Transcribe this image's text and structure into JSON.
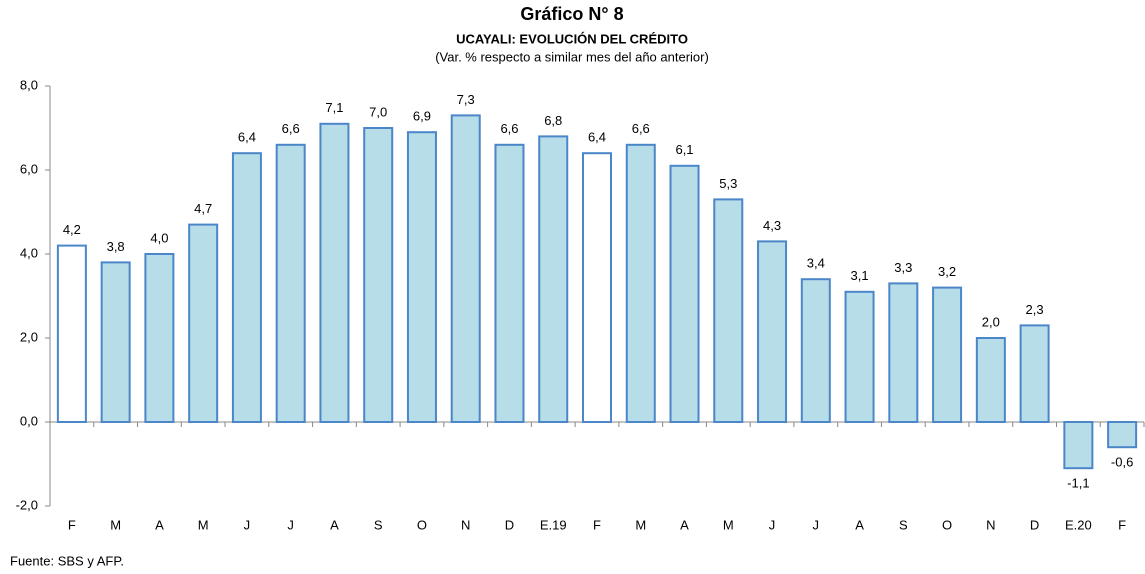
{
  "chart_data": {
    "type": "bar",
    "title": "Gráfico N° 8",
    "subtitle": "UCAYALI: EVOLUCIÓN DEL CRÉDITO",
    "note": "(Var. % respecto a similar mes del año anterior)",
    "source": "Fuente: SBS y AFP.",
    "categories": [
      "F",
      "M",
      "A",
      "M",
      "J",
      "J",
      "A",
      "S",
      "O",
      "N",
      "D",
      "E.19",
      "F",
      "M",
      "A",
      "M",
      "J",
      "J",
      "A",
      "S",
      "O",
      "N",
      "D",
      "E.20",
      "F"
    ],
    "values": [
      4.2,
      3.8,
      4.0,
      4.7,
      6.4,
      6.6,
      7.1,
      7.0,
      6.9,
      7.3,
      6.6,
      6.8,
      6.4,
      6.6,
      6.1,
      5.3,
      4.3,
      3.4,
      3.1,
      3.3,
      3.2,
      2.0,
      2.3,
      -1.1,
      -0.6
    ],
    "value_labels": [
      "4,2",
      "3,8",
      "4,0",
      "4,7",
      "6,4",
      "6,6",
      "7,1",
      "7,0",
      "6,9",
      "7,3",
      "6,6",
      "6,8",
      "6,4",
      "6,6",
      "6,1",
      "5,3",
      "4,3",
      "3,4",
      "3,1",
      "3,3",
      "3,2",
      "2,0",
      "2,3",
      "-1,1",
      "-0,6"
    ],
    "colors": [
      "#ffffff",
      "#b7dde8",
      "#b7dde8",
      "#b7dde8",
      "#b7dde8",
      "#b7dde8",
      "#b7dde8",
      "#b7dde8",
      "#b7dde8",
      "#b7dde8",
      "#b7dde8",
      "#b7dde8",
      "#ffffff",
      "#b7dde8",
      "#b7dde8",
      "#b7dde8",
      "#b7dde8",
      "#b7dde8",
      "#b7dde8",
      "#b7dde8",
      "#b7dde8",
      "#b7dde8",
      "#b7dde8",
      "#b7dde8",
      "#b7dde8"
    ],
    "edge_color": "#4a86c8",
    "ylim": [
      -2.0,
      8.0
    ],
    "yticks": [
      {
        "value": -2.0,
        "label": "-2,0"
      },
      {
        "value": 0.0,
        "label": "0,0"
      },
      {
        "value": 2.0,
        "label": "2,0"
      },
      {
        "value": 4.0,
        "label": "4,0"
      },
      {
        "value": 6.0,
        "label": "6,0"
      },
      {
        "value": 8.0,
        "label": "8,0"
      }
    ],
    "grid": false
  }
}
